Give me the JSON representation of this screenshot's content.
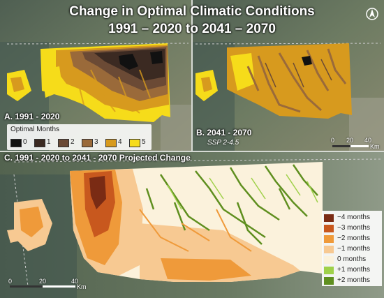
{
  "title": {
    "line1": "Change in Optimal Climatic Conditions",
    "line2": "1991 – 2020 to 2041 – 2070"
  },
  "north_arrow": "north-arrow-icon",
  "panel_a": {
    "label": "A. 1991 - 2020",
    "legend_title": "Optimal Months",
    "legend": [
      {
        "label": "0",
        "color": "#111111"
      },
      {
        "label": "1",
        "color": "#3b2a22"
      },
      {
        "label": "2",
        "color": "#6b4a35"
      },
      {
        "label": "3",
        "color": "#9a6a3a"
      },
      {
        "label": "4",
        "color": "#d79a1e"
      },
      {
        "label": "5",
        "color": "#f6dc1a"
      }
    ]
  },
  "panel_b": {
    "label": "B. 2041 - 2070",
    "scenario": "SSP 2-4.5",
    "scale": {
      "ticks": [
        "0",
        "20",
        "40"
      ],
      "unit": "Km"
    }
  },
  "panel_c": {
    "label": "C. 1991 - 2020 to 2041 - 2070 Projected Change",
    "legend": [
      {
        "label": "−4 months",
        "color": "#7a2b14"
      },
      {
        "label": "−3 months",
        "color": "#c8581e"
      },
      {
        "label": "−2 months",
        "color": "#ef9a3a"
      },
      {
        "label": "−1 months",
        "color": "#f7c992"
      },
      {
        "label": "0 months",
        "color": "#fbf2dc"
      },
      {
        "label": "+1 months",
        "color": "#9fd14a"
      },
      {
        "label": "+2 months",
        "color": "#5f8f1f"
      }
    ],
    "scale": {
      "ticks": [
        "0",
        "20",
        "40"
      ],
      "unit": "Km"
    }
  }
}
